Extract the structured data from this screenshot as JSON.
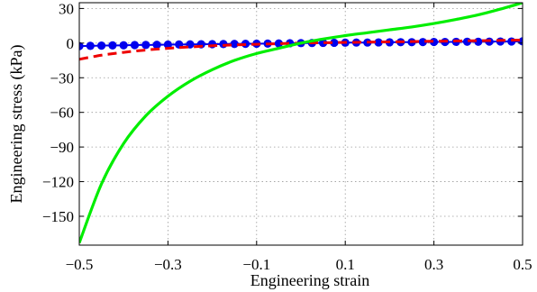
{
  "chart_data": {
    "type": "line",
    "title": "",
    "xlabel": "Engineering strain",
    "ylabel": "Engineering stress (kPa)",
    "xlim": [
      -0.5,
      0.5
    ],
    "ylim": [
      -175,
      35
    ],
    "xticks": [
      -0.5,
      -0.3,
      -0.1,
      0.1,
      0.3,
      0.5
    ],
    "xtick_labels": [
      "−0.5",
      "−0.3",
      "−0.1",
      "0.1",
      "0.3",
      "0.5"
    ],
    "yticks": [
      30,
      0,
      -30,
      -60,
      -90,
      -120,
      -150
    ],
    "ytick_labels": [
      "30",
      "0",
      "−30",
      "−60",
      "−90",
      "−120",
      "−150"
    ],
    "grid": true,
    "legend": null,
    "series": [
      {
        "color": "#00ee00",
        "style": "solid",
        "x": [
          -0.5,
          -0.45,
          -0.4,
          -0.35,
          -0.3,
          -0.25,
          -0.2,
          -0.15,
          -0.1,
          -0.05,
          0.0,
          0.05,
          0.1,
          0.15,
          0.2,
          0.25,
          0.3,
          0.35,
          0.4,
          0.45,
          0.5
        ],
        "y": [
          -173,
          -122,
          -87,
          -63,
          -46,
          -33,
          -23,
          -15,
          -9,
          -4.5,
          0,
          3.5,
          6.5,
          9,
          11.5,
          14,
          17,
          20.5,
          24.5,
          29.5,
          35
        ]
      },
      {
        "color": "#ee0000",
        "style": "dashed",
        "x": [
          -0.5,
          -0.45,
          -0.4,
          -0.35,
          -0.3,
          -0.25,
          -0.2,
          -0.15,
          -0.1,
          -0.05,
          0.0,
          0.1,
          0.2,
          0.3,
          0.4,
          0.5
        ],
        "y": [
          -14,
          -10.5,
          -8,
          -6,
          -4.5,
          -3.3,
          -2.3,
          -1.6,
          -1,
          -0.5,
          0,
          0.6,
          1.1,
          1.6,
          2.1,
          2.6
        ]
      },
      {
        "color": "#0000ee",
        "style": "markers",
        "x": [
          -0.5,
          -0.475,
          -0.45,
          -0.425,
          -0.4,
          -0.375,
          -0.35,
          -0.325,
          -0.3,
          -0.275,
          -0.25,
          -0.225,
          -0.2,
          -0.175,
          -0.15,
          -0.125,
          -0.1,
          -0.075,
          -0.05,
          -0.025,
          0.0,
          0.025,
          0.05,
          0.075,
          0.1,
          0.125,
          0.15,
          0.175,
          0.2,
          0.225,
          0.25,
          0.275,
          0.3,
          0.325,
          0.35,
          0.375,
          0.4,
          0.425,
          0.45,
          0.475,
          0.5
        ],
        "y": [
          -2.6,
          -2.4,
          -2.2,
          -2.0,
          -1.9,
          -1.7,
          -1.6,
          -1.5,
          -1.3,
          -1.2,
          -1.1,
          -1.0,
          -0.9,
          -0.8,
          -0.7,
          -0.6,
          -0.5,
          -0.4,
          -0.3,
          -0.1,
          0.0,
          0.1,
          0.2,
          0.3,
          0.4,
          0.5,
          0.5,
          0.6,
          0.7,
          0.8,
          0.8,
          0.9,
          1.0,
          1.0,
          1.1,
          1.2,
          1.2,
          1.3,
          1.4,
          1.4,
          1.5
        ]
      }
    ]
  }
}
